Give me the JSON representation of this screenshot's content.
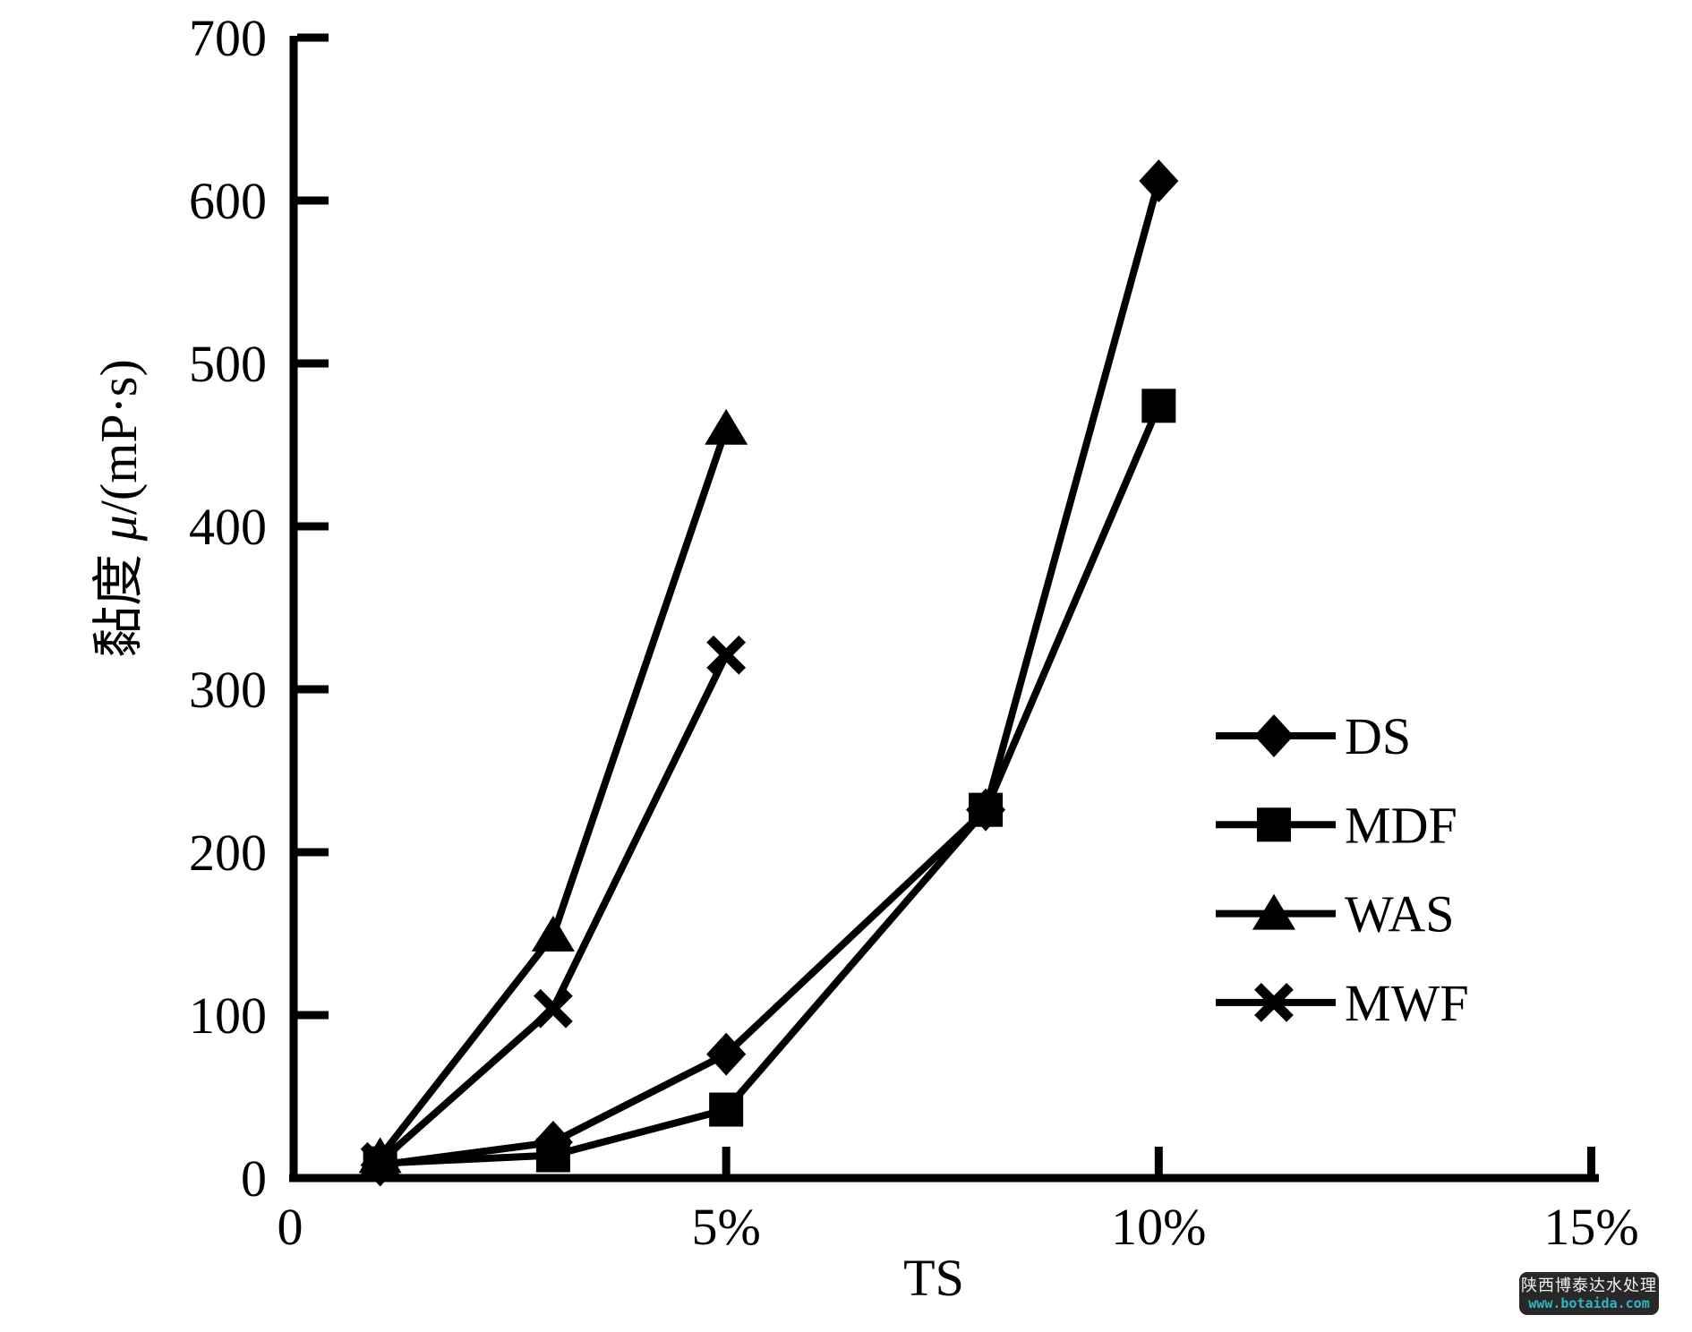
{
  "chart_data": {
    "type": "line",
    "title": "",
    "xlabel": "TS",
    "ylabel": "黏度 μ/(mP·s)",
    "xlim": [
      0,
      15
    ],
    "ylim": [
      0,
      700
    ],
    "grid": false,
    "legend_position": "right-middle",
    "axis_color": "#000000",
    "x_ticks": [
      {
        "v": 0,
        "label": "0"
      },
      {
        "v": 5,
        "label": "5%"
      },
      {
        "v": 10,
        "label": "10%"
      },
      {
        "v": 15,
        "label": "15%"
      }
    ],
    "y_ticks": [
      {
        "v": 0,
        "label": "0"
      },
      {
        "v": 100,
        "label": "100"
      },
      {
        "v": 200,
        "label": "200"
      },
      {
        "v": 300,
        "label": "300"
      },
      {
        "v": 400,
        "label": "400"
      },
      {
        "v": 500,
        "label": "500"
      },
      {
        "v": 600,
        "label": "600"
      },
      {
        "v": 700,
        "label": "700"
      }
    ],
    "series": [
      {
        "name": "DS",
        "marker": "diamond",
        "color": "#000000",
        "points": [
          [
            1,
            8
          ],
          [
            3,
            22
          ],
          [
            5,
            76
          ],
          [
            8,
            226
          ],
          [
            10,
            612
          ]
        ]
      },
      {
        "name": "MDF",
        "marker": "square",
        "color": "#000000",
        "points": [
          [
            1,
            9
          ],
          [
            3,
            14
          ],
          [
            5,
            42
          ],
          [
            8,
            226
          ],
          [
            10,
            474
          ]
        ]
      },
      {
        "name": "WAS",
        "marker": "triangle",
        "color": "#000000",
        "points": [
          [
            1,
            13
          ],
          [
            3,
            149
          ],
          [
            5,
            460
          ]
        ]
      },
      {
        "name": "MWF",
        "marker": "x",
        "color": "#000000",
        "points": [
          [
            1,
            10
          ],
          [
            3,
            104
          ],
          [
            5,
            321
          ]
        ]
      }
    ]
  },
  "watermark": {
    "line1": "陕西博泰达水处理",
    "line2": "www.botaida.com",
    "bg_color": "#282828",
    "text_color": "#f0f0f0",
    "link_color": "#2eb6c7"
  }
}
